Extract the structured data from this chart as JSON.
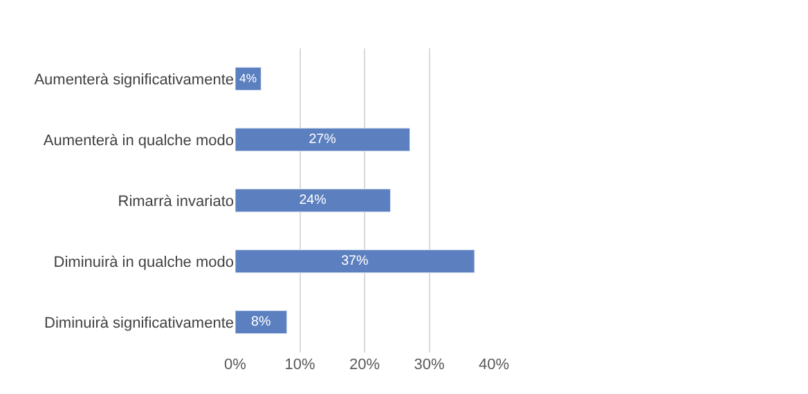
{
  "chart_data": {
    "type": "bar",
    "orientation": "horizontal",
    "categories": [
      "Aumenterà significativamente",
      "Aumenterà in qualche modo",
      "Rimarrà invariato",
      "Diminuirà in qualche modo",
      "Diminuirà significativamente"
    ],
    "values": [
      4,
      27,
      24,
      37,
      8
    ],
    "value_labels": [
      "4%",
      "27%",
      "24%",
      "37%",
      "8%"
    ],
    "color": "#5b7fbf",
    "xlim": [
      0,
      40
    ],
    "xticks": [
      {
        "value": 0,
        "label": "0%"
      },
      {
        "value": 10,
        "label": "10%"
      },
      {
        "value": 20,
        "label": "20%"
      },
      {
        "value": 30,
        "label": "30%"
      },
      {
        "value": 40,
        "label": "40%"
      }
    ],
    "grid": "x",
    "legend": false
  }
}
